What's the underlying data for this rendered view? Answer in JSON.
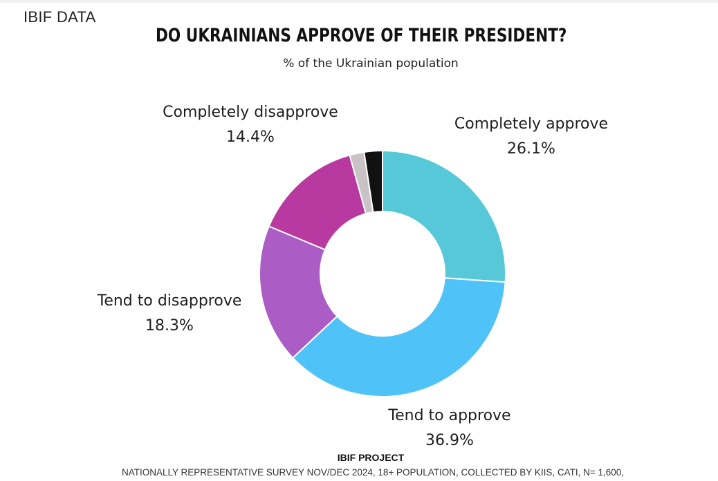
{
  "header": {
    "brand": "IBIF DATA"
  },
  "footer": {
    "project": "IBIF PROJECT",
    "note": "NATIONALLY REPRESENTATIVE SURVEY NOV/DEC 2024, 18+ POPULATION, COLLECTED BY KIIS, CATI, N= 1,600,"
  },
  "colors": {
    "completely_approve": "#56c8d8",
    "tend_to_approve": "#4fc3f7",
    "tend_to_disapprove": "#ab5cc5",
    "completely_disapprove": "#b83aa0",
    "slice_grey": "#c9c3c6",
    "slice_black": "#111111"
  },
  "chart_data": {
    "type": "pie",
    "variant": "donut",
    "title": "DO UKRAINIANS APPROVE OF THEIR PRESIDENT?",
    "subtitle": "% of the Ukrainian population",
    "legend": "none",
    "start": "12 o'clock, clockwise",
    "slices": [
      {
        "label": "Completely approve",
        "value": 26.1,
        "value_label": "26.1%",
        "color": "#56c8d8"
      },
      {
        "label": "Tend to approve",
        "value": 36.9,
        "value_label": "36.9%",
        "color": "#4fc3f7"
      },
      {
        "label": "Tend to disapprove",
        "value": 18.3,
        "value_label": "18.3%",
        "color": "#ab5cc5"
      },
      {
        "label": "Completely disapprove",
        "value": 14.4,
        "value_label": "14.4%",
        "color": "#b83aa0"
      },
      {
        "label": "",
        "value": 1.9,
        "value_label": "",
        "color": "#c9c3c6"
      },
      {
        "label": "",
        "value": 2.4,
        "value_label": "",
        "color": "#111111"
      }
    ]
  }
}
